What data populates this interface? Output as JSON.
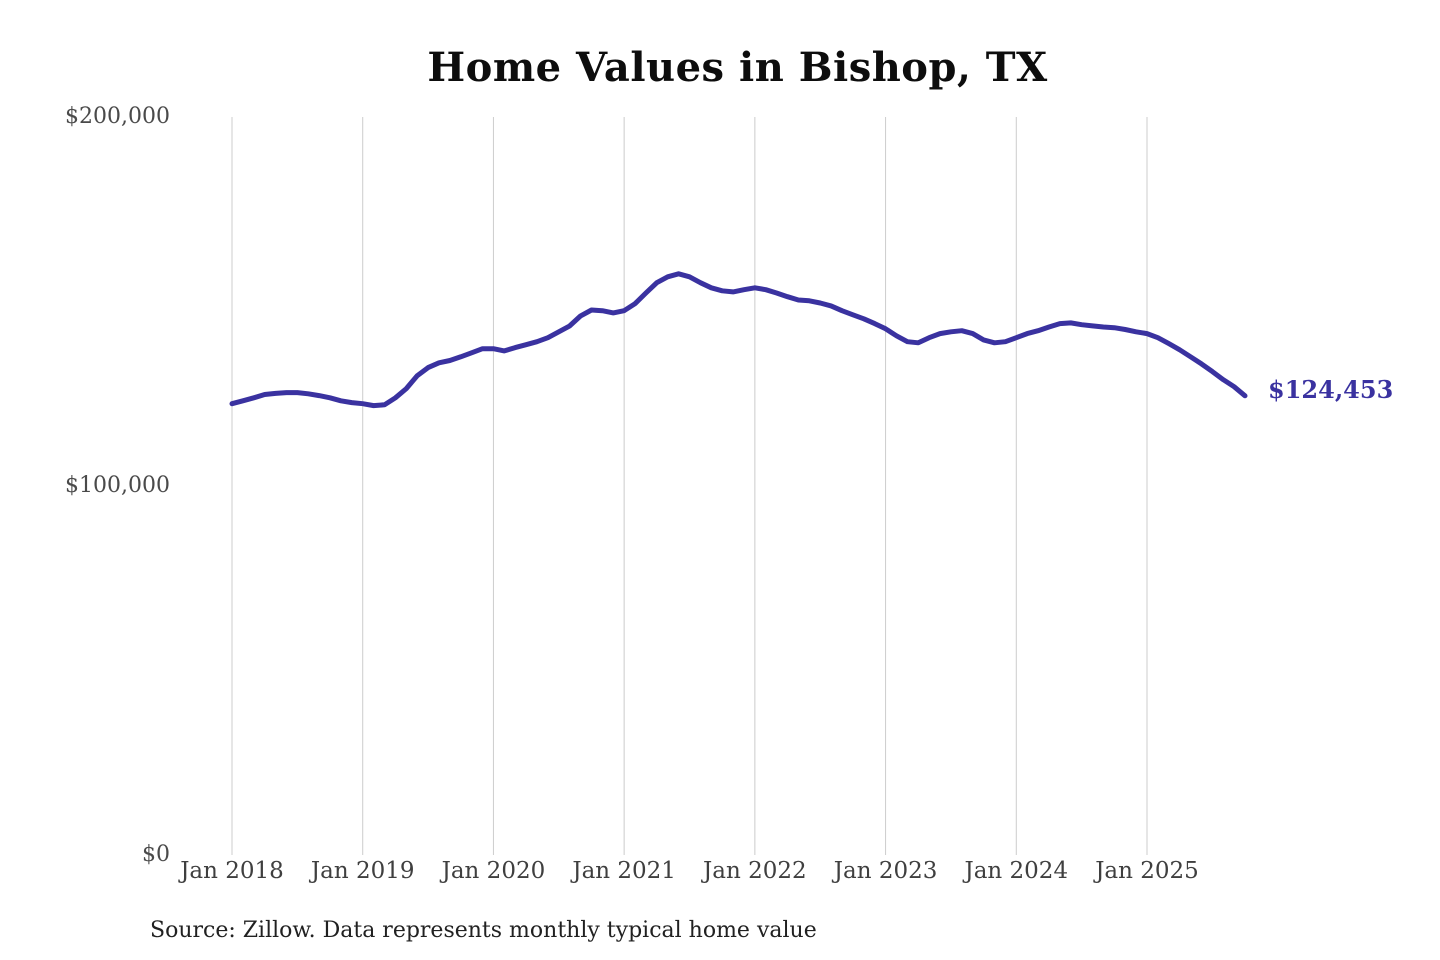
{
  "chart_data": {
    "type": "line",
    "title": "Home Values in Bishop, TX",
    "xlabel": "",
    "ylabel": "",
    "x_tick_labels": [
      "Jan 2018",
      "Jan 2019",
      "Jan 2020",
      "Jan 2021",
      "Jan 2022",
      "Jan 2023",
      "Jan 2024",
      "Jan 2025"
    ],
    "y_tick_labels": [
      "$0",
      "$100,000",
      "$200,000"
    ],
    "y_tick_values": [
      0,
      100000,
      200000
    ],
    "ylim": [
      0,
      200000
    ],
    "grid": "vertical-only",
    "legend": "none",
    "line_color": "#3a32a0",
    "gridline_color": "#cccccc",
    "end_label": "$124,453",
    "final_value": 124453,
    "series": [
      {
        "name": "Monthly typical home value",
        "start_month": "2018-01",
        "end_month": "2025-10",
        "values": [
          122300,
          123100,
          123900,
          124800,
          125100,
          125300,
          125300,
          125000,
          124500,
          123900,
          123100,
          122600,
          122300,
          121800,
          122000,
          123900,
          126400,
          129900,
          132100,
          133400,
          134000,
          135000,
          136100,
          137200,
          137200,
          136600,
          137500,
          138300,
          139100,
          140200,
          141800,
          143400,
          146100,
          147700,
          147500,
          146900,
          147500,
          149400,
          152300,
          155100,
          156700,
          157500,
          156700,
          155100,
          153700,
          152900,
          152600,
          153200,
          153700,
          153200,
          152300,
          151300,
          150400,
          150200,
          149600,
          148800,
          147500,
          146400,
          145300,
          144000,
          142600,
          140700,
          139100,
          138800,
          140200,
          141300,
          141800,
          142100,
          141300,
          139600,
          138800,
          139100,
          140200,
          141300,
          142100,
          143100,
          144000,
          144200,
          143700,
          143400,
          143100,
          142900,
          142400,
          141800,
          141300,
          140200,
          138600,
          136900,
          135000,
          133100,
          131000,
          128800,
          126900,
          124453
        ]
      }
    ],
    "source": "Source: Zillow. Data represents monthly typical home value"
  }
}
